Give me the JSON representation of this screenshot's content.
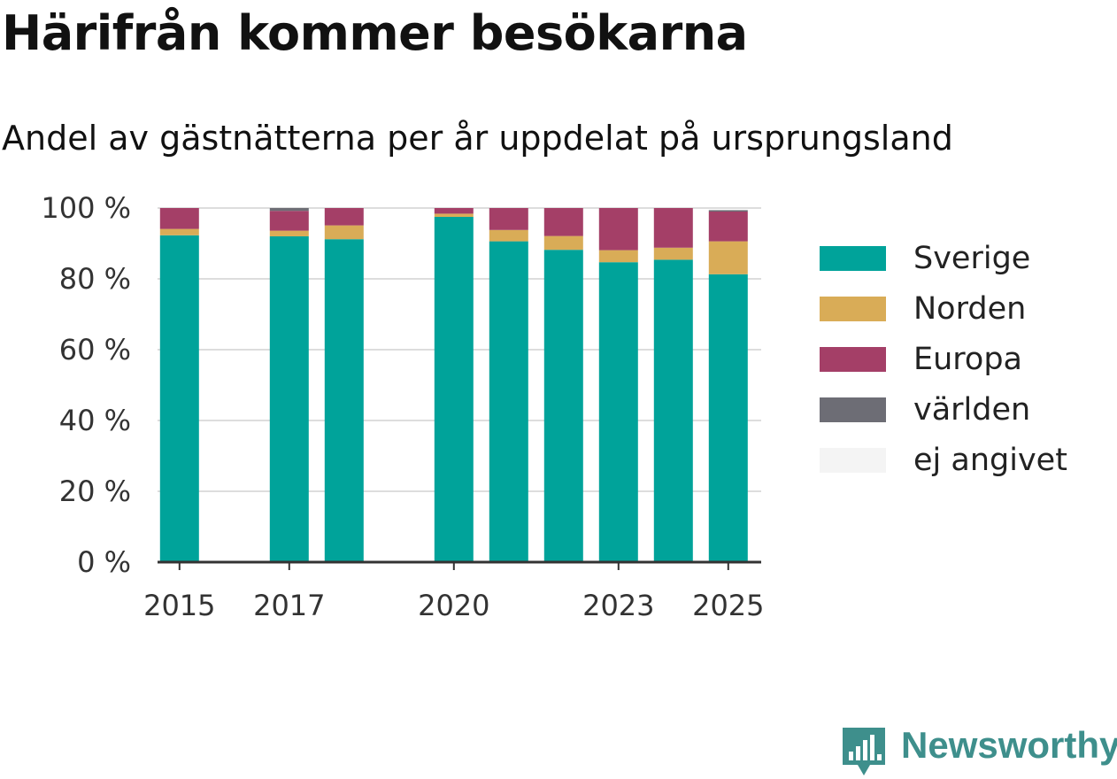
{
  "header": {
    "title": "Härifrån kommer besökarna",
    "subtitle": "Andel av gästnätterna per år uppdelat på ursprungsland"
  },
  "brand": {
    "name": "Newsworthy",
    "icon": "newsworthy-logo-icon",
    "color": "#3e8f8c"
  },
  "chart_data": {
    "type": "bar",
    "stacked": true,
    "title": "Härifrån kommer besökarna",
    "subtitle": "Andel av gästnätterna per år uppdelat på ursprungsland",
    "xlabel": "",
    "ylabel": "",
    "x": [
      2015,
      2017,
      2018,
      2020,
      2021,
      2022,
      2023,
      2024,
      2025
    ],
    "x_domain": [
      2014.6,
      2025.6
    ],
    "x_ticks": [
      2015,
      2017,
      2020,
      2023,
      2025
    ],
    "ylim": [
      0,
      100
    ],
    "y_ticks": [
      0,
      20,
      40,
      60,
      80,
      100
    ],
    "y_tick_suffix": " %",
    "grid": true,
    "legend_position": "right",
    "series": [
      {
        "name": "Sverige",
        "color": "#00a39a",
        "values": [
          92.3,
          92.0,
          91.2,
          97.5,
          90.6,
          88.2,
          84.7,
          85.4,
          81.3
        ]
      },
      {
        "name": "Norden",
        "color": "#d9ac57",
        "values": [
          1.8,
          1.6,
          3.9,
          0.9,
          3.2,
          3.9,
          3.4,
          3.4,
          9.3
        ]
      },
      {
        "name": "Europa",
        "color": "#a43f67",
        "values": [
          5.9,
          5.6,
          4.9,
          1.6,
          6.2,
          7.9,
          11.9,
          11.2,
          8.4
        ]
      },
      {
        "name": "världen",
        "color": "#6d6d75",
        "values": [
          0,
          0.8,
          0,
          0,
          0,
          0,
          0,
          0,
          0.4
        ]
      },
      {
        "name": "ej angivet",
        "color": "#f4f4f4",
        "values": [
          0,
          0,
          0,
          0,
          0,
          0,
          0,
          0,
          0
        ]
      }
    ]
  }
}
